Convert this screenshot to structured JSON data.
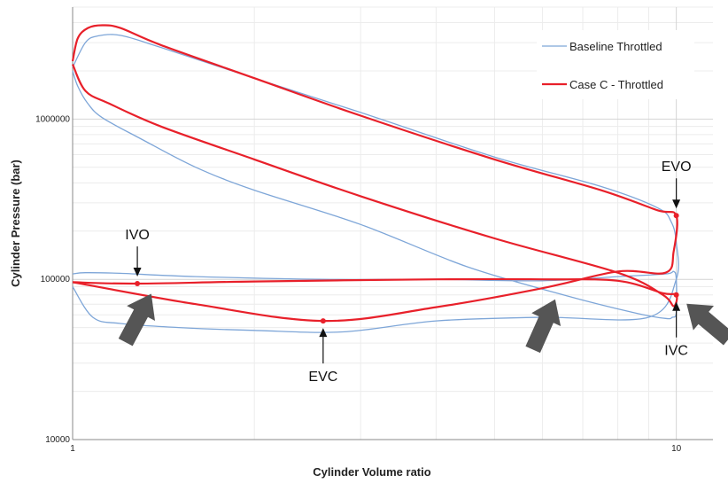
{
  "chart_data": {
    "type": "line",
    "xlabel": "Cylinder Volume ratio",
    "ylabel": "Cylinder Pressure (bar)",
    "x_scale": "log",
    "y_scale": "log",
    "xlim": [
      1,
      11.5
    ],
    "ylim": [
      10000,
      5000000
    ],
    "x_ticks": [
      1,
      10
    ],
    "x_tick_labels": [
      "1",
      "10"
    ],
    "y_ticks": [
      10000,
      100000,
      1000000
    ],
    "y_tick_labels": [
      "10000",
      "100000",
      "1000000"
    ],
    "grid": true,
    "legend_position": "top-right",
    "colors": {
      "baseline": "#7ea6d8",
      "case_c": "#e8202a",
      "arrow": "#555555"
    },
    "series": [
      {
        "name": "Baseline Throttled",
        "color": "#7ea6d8",
        "x": [
          1.0,
          1.02,
          1.06,
          1.12,
          1.3,
          1.6,
          2.0,
          3.0,
          4.5,
          6.5,
          8.5,
          9.6,
          9.85,
          10.0,
          10.0,
          9.9,
          9.6,
          8.0,
          6.0,
          4.0,
          2.6,
          1.6,
          1.2,
          1.05,
          1.0
        ],
        "y": [
          2000000,
          1600000,
          1250000,
          1020000,
          750000,
          500000,
          360000,
          220000,
          120000,
          80000,
          62000,
          57000,
          58000,
          62000,
          100000,
          112000,
          108000,
          104000,
          98000,
          100000,
          100000,
          104000,
          109000,
          110000,
          108000
        ]
      },
      {
        "name": "Baseline Throttled",
        "color": "#7ea6d8",
        "x": [
          1.0,
          1.05,
          1.1,
          1.2,
          1.4,
          2.0,
          3.0,
          5.0,
          7.5,
          9.3,
          9.8,
          10.0,
          10.0,
          9.0,
          6.0,
          4.0,
          2.8,
          2.0,
          1.5,
          1.2,
          1.08,
          1.0
        ],
        "y": [
          2100000,
          3000000,
          3300000,
          3330000,
          2800000,
          1800000,
          1100000,
          580000,
          380000,
          280000,
          230000,
          170000,
          100000,
          58000,
          58000,
          55000,
          47000,
          48000,
          50000,
          53000,
          58000,
          90000
        ]
      },
      {
        "name": "Case C - Throttled",
        "color": "#e8202a",
        "x": [
          1.0,
          1.02,
          1.06,
          1.12,
          1.2,
          1.4,
          2.0,
          3.0,
          5.0,
          7.5,
          9.3,
          10.0,
          9.9,
          9.6,
          8.0,
          6.0,
          4.0,
          2.6,
          1.6,
          1.0
        ],
        "y": [
          2300000,
          3200000,
          3700000,
          3850000,
          3700000,
          2900000,
          1800000,
          1050000,
          560000,
          360000,
          270000,
          250000,
          150000,
          110000,
          112000,
          88000,
          67000,
          55000,
          70000,
          96000
        ]
      },
      {
        "name": "Case C - Throttled",
        "color": "#e8202a",
        "x": [
          1.0,
          1.05,
          1.15,
          1.4,
          2.0,
          3.0,
          5.0,
          8.0,
          9.5,
          9.9,
          10.0,
          9.5,
          8.0,
          6.0,
          4.0,
          2.0,
          1.28,
          1.0
        ],
        "y": [
          2200000,
          1500000,
          1250000,
          900000,
          560000,
          330000,
          180000,
          110000,
          80000,
          68000,
          80000,
          82000,
          98000,
          100000,
          100000,
          97000,
          94000,
          96000
        ]
      }
    ],
    "markers": [
      {
        "label": "IVO",
        "x": 1.28,
        "y": 94000
      },
      {
        "label": "EVC",
        "x": 2.6,
        "y": 55000
      },
      {
        "label": "EVO",
        "x": 10.0,
        "y": 250000
      },
      {
        "label": "IVC",
        "x": 10.0,
        "y": 80000
      }
    ],
    "annotations": [
      {
        "text": "IVO",
        "x": 1.28,
        "y": 94000,
        "side": "above"
      },
      {
        "text": "EVC",
        "x": 2.6,
        "y": 55000,
        "side": "below"
      },
      {
        "text": "EVO",
        "x": 10.0,
        "y": 250000,
        "side": "above"
      },
      {
        "text": "IVC",
        "x": 10.0,
        "y": 80000,
        "side": "below"
      }
    ],
    "legend": [
      {
        "label": "Baseline Throttled",
        "color": "#7ea6d8"
      },
      {
        "label": "Case C - Throttled",
        "color": "#e8202a"
      }
    ]
  }
}
